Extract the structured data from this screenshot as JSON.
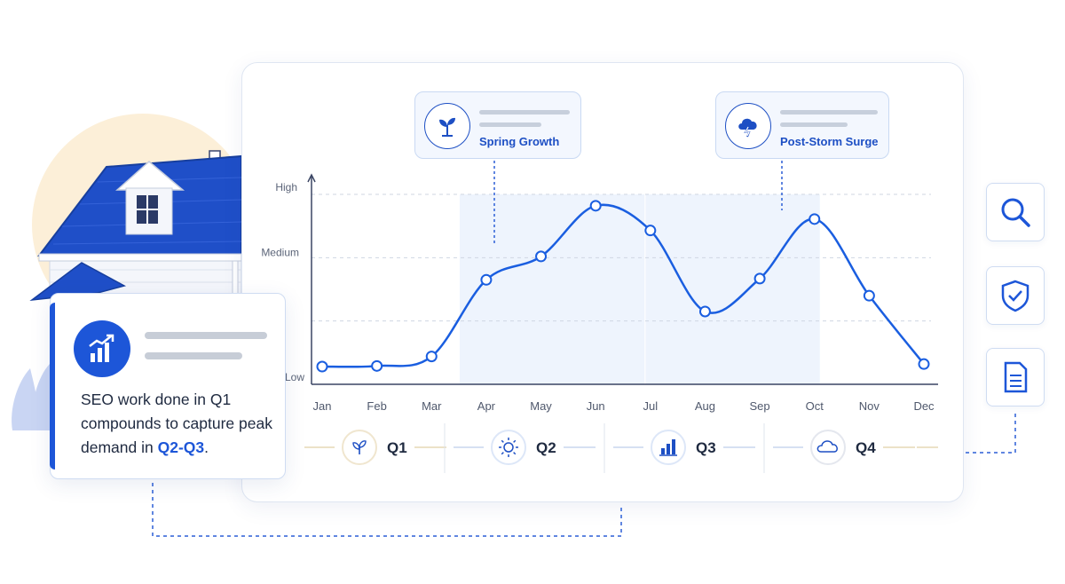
{
  "chart_data": {
    "type": "line",
    "categories": [
      "Jan",
      "Feb",
      "Mar",
      "Apr",
      "May",
      "Jun",
      "Jul",
      "Aug",
      "Sep",
      "Oct",
      "Nov",
      "Dec"
    ],
    "values": [
      0.28,
      0.29,
      0.44,
      1.65,
      2.02,
      2.82,
      2.43,
      1.15,
      1.67,
      2.61,
      1.4,
      0.32
    ],
    "y_tick_labels": [
      "Low",
      "Medium",
      "High"
    ],
    "ylim": [
      0,
      3
    ],
    "grid": true,
    "highlight_range": [
      "Apr",
      "Oct"
    ],
    "quarters": [
      {
        "label": "Q1",
        "icon": "sprout-icon"
      },
      {
        "label": "Q2",
        "icon": "sun-icon"
      },
      {
        "label": "Q3",
        "icon": "bar-chart-icon"
      },
      {
        "label": "Q4",
        "icon": "cloud-icon"
      }
    ],
    "annotations": [
      {
        "label": "Spring Growth",
        "month": "Apr",
        "icon": "sprout-icon"
      },
      {
        "label": "Post-Storm Surge",
        "month": "Sep",
        "icon": "storm-cloud-icon"
      }
    ]
  },
  "info_card": {
    "text_before": "SEO work done in Q1 compounds to capture peak demand in",
    "highlight": "Q2-Q3",
    "text_after": ".",
    "icon": "growth-chart-icon"
  },
  "side_toolbar": [
    {
      "name": "search",
      "icon": "search-icon"
    },
    {
      "name": "verified",
      "icon": "shield-check-icon"
    },
    {
      "name": "document",
      "icon": "document-icon"
    }
  ],
  "colors": {
    "accent": "#1d56d8",
    "line": "#1a5ee0",
    "highlight_band": "#eef4fd",
    "sun": "#fcefd8",
    "roof": "#1f4fc8"
  }
}
